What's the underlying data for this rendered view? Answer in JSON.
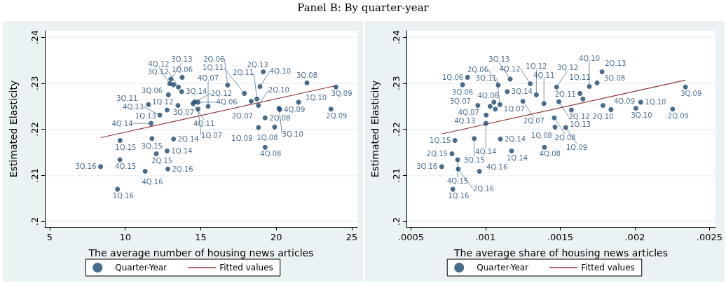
{
  "chart_data": [
    {
      "type": "scatter",
      "title": "Panel B: By quarter-year",
      "xlabel": "The average number of housing news articles",
      "ylabel": "Estimated Elasticity",
      "xlim": [
        4.68,
        25.37
      ],
      "xticks": [
        5,
        10,
        15,
        20,
        25
      ],
      "ylim": [
        0.1988,
        0.2414
      ],
      "yticks": [
        {
          "value": 0.2,
          "label": ".2"
        },
        {
          "value": 0.21,
          "label": ".21"
        },
        {
          "value": 0.22,
          "label": ".22"
        },
        {
          "value": 0.23,
          "label": ".23"
        },
        {
          "value": 0.24,
          "label": ".24"
        }
      ],
      "grid": "y",
      "legend": "bottom",
      "marker": "circle",
      "series": [
        {
          "name": "Quarter-Year",
          "color": "#1a476f",
          "x": [
            13.77,
            16.78,
            13.2,
            14.82,
            14.82,
            18.34,
            13.49,
            15.49,
            19.89,
            19.26,
            22.03,
            19.26,
            18.82,
            23.62,
            23.95,
            20.23,
            21.48,
            18.82,
            20.18,
            18.92,
            17.89,
            18.72,
            11.54,
            14.49,
            12.86,
            14.6,
            13.52,
            12.95,
            12.77,
            19.14,
            13.02,
            12.29,
            12.77,
            13.2,
            13.74,
            11.71,
            9.66,
            12.06,
            11.77,
            9.65,
            9.49,
            12.82,
            8.37,
            11.32
          ],
          "values": [
            0.2313,
            0.2296,
            0.2297,
            0.2259,
            0.2244,
            0.2261,
            0.2252,
            0.225,
            0.2205,
            0.2225,
            0.2301,
            0.2161,
            0.2204,
            0.2244,
            0.2292,
            0.2243,
            0.2259,
            0.2252,
            0.2246,
            0.2293,
            0.2278,
            0.2266,
            0.2254,
            0.2256,
            0.2275,
            0.226,
            0.2292,
            0.2299,
            0.2242,
            0.2325,
            0.2309,
            0.2231,
            0.2153,
            0.2179,
            0.2282,
            0.2213,
            0.2176,
            0.2147,
            0.218,
            0.2134,
            0.207,
            0.2114,
            0.2119,
            0.2109
          ],
          "value_labels": [
            "1Q.06",
            "2Q.06",
            "3Q.06",
            "4Q.06",
            "1Q.07",
            "2Q.07",
            "3Q.07",
            "4Q.07",
            "1Q.08",
            "2Q.08",
            "3Q.08",
            "4Q.08",
            "1Q.09",
            "2Q.09",
            "3Q.09",
            "4Q.09",
            "1Q.10",
            "2Q.10",
            "3Q.10",
            "4Q.10",
            "1Q.11",
            "2Q.11",
            "3Q.11",
            "4Q.11",
            "1Q.12",
            "2Q.12",
            "3Q.12",
            "4Q.12",
            "1Q.13",
            "2Q.13",
            "3Q.13",
            "4Q.13",
            "1Q.14",
            "2Q.14",
            "3Q.14",
            "4Q.14",
            "1Q.15",
            "2Q.15",
            "3Q.15",
            "4Q.15",
            "1Q.16",
            "2Q.16",
            "3Q.16",
            "4Q.16"
          ]
        },
        {
          "name": "Fitted values",
          "type": "line",
          "marker": "none",
          "color": "#90353b",
          "x": [
            8.37,
            23.95
          ],
          "values": [
            0.2182,
            0.2295
          ]
        }
      ]
    },
    {
      "type": "scatter",
      "xlabel": "The average share of housing news articles",
      "ylabel": "Estimated Elasticity",
      "xlim": [
        0.00047,
        0.00254
      ],
      "xticks": [
        {
          "value": 0.0005,
          "label": ".0005"
        },
        {
          "value": 0.001,
          "label": ".001"
        },
        {
          "value": 0.0015,
          "label": ".0015"
        },
        {
          "value": 0.002,
          "label": ".002"
        },
        {
          "value": 0.0025,
          "label": ".0025"
        }
      ],
      "ylim": [
        0.1988,
        0.2414
      ],
      "yticks": [
        {
          "value": 0.2,
          "label": ".2"
        },
        {
          "value": 0.21,
          "label": ".21"
        },
        {
          "value": 0.22,
          "label": ".22"
        },
        {
          "value": 0.23,
          "label": ".23"
        },
        {
          "value": 0.24,
          "label": ".24"
        }
      ],
      "grid": "y",
      "legend": "bottom",
      "marker": "circle",
      "series": [
        {
          "name": "Quarter-Year",
          "color": "#1a476f",
          "x": [
            0.000879,
            0.001085,
            0.000846,
            0.001056,
            0.001065,
            0.00125,
            0.000948,
            0.00103,
            0.001465,
            0.00146,
            0.001747,
            0.001394,
            0.001537,
            0.002253,
            0.002339,
            0.00184,
            0.002039,
            0.001786,
            0.002007,
            0.001695,
            0.001632,
            0.001652,
            0.001096,
            0.001391,
            0.00134,
            0.001491,
            0.001476,
            0.001299,
            0.001575,
            0.00178,
            0.001165,
            0.001004,
            0.001174,
            0.001099,
            0.001145,
            0.001002,
            0.000795,
            0.000775,
            0.000924,
            0.000813,
            0.000781,
            0.000817,
            0.000706,
            0.000959
          ],
          "values": [
            0.2313,
            0.2296,
            0.2297,
            0.2259,
            0.2244,
            0.2261,
            0.2252,
            0.225,
            0.2205,
            0.2225,
            0.2301,
            0.2161,
            0.2204,
            0.2244,
            0.2292,
            0.2243,
            0.2259,
            0.2252,
            0.2246,
            0.2293,
            0.2278,
            0.2266,
            0.2254,
            0.2256,
            0.2275,
            0.226,
            0.2292,
            0.2299,
            0.2242,
            0.2325,
            0.2309,
            0.2231,
            0.2153,
            0.2179,
            0.2282,
            0.2213,
            0.2176,
            0.2147,
            0.218,
            0.2134,
            0.207,
            0.2114,
            0.2119,
            0.2109
          ],
          "value_labels": [
            "1Q.06",
            "2Q.06",
            "3Q.06",
            "4Q.06",
            "1Q.07",
            "2Q.07",
            "3Q.07",
            "4Q.07",
            "1Q.08",
            "2Q.08",
            "3Q.08",
            "4Q.08",
            "1Q.09",
            "2Q.09",
            "3Q.09",
            "4Q.09",
            "1Q.10",
            "2Q.10",
            "3Q.10",
            "4Q.10",
            "1Q.11",
            "2Q.11",
            "3Q.11",
            "4Q.11",
            "1Q.12",
            "2Q.12",
            "3Q.12",
            "4Q.12",
            "1Q.13",
            "2Q.13",
            "3Q.13",
            "4Q.13",
            "1Q.14",
            "2Q.14",
            "3Q.14",
            "4Q.14",
            "1Q.15",
            "2Q.15",
            "3Q.15",
            "4Q.15",
            "1Q.16",
            "2Q.16",
            "3Q.16",
            "4Q.16"
          ]
        },
        {
          "name": "Fitted values",
          "type": "line",
          "marker": "none",
          "color": "#90353b",
          "x": [
            0.000707,
            0.002339
          ],
          "values": [
            0.219,
            0.2307
          ]
        }
      ]
    }
  ]
}
